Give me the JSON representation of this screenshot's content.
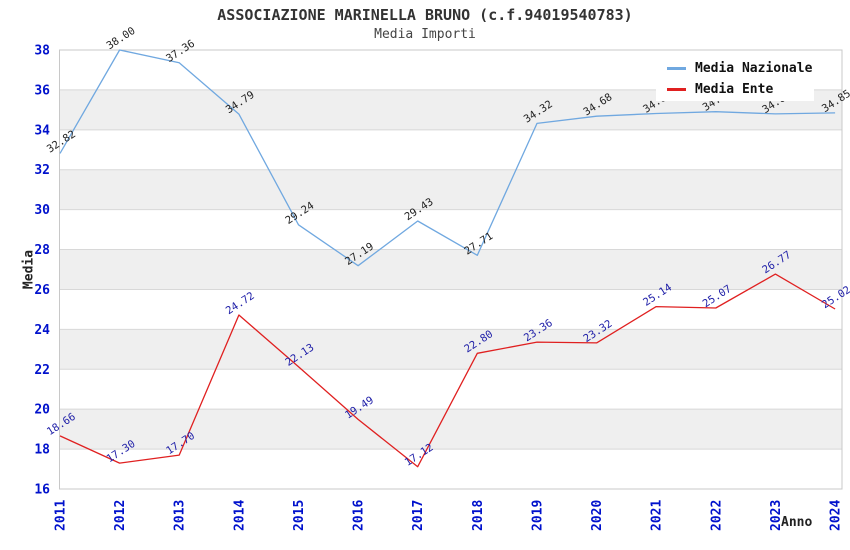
{
  "header": {
    "title": "ASSOCIAZIONE MARINELLA BRUNO (c.f.94019540783)",
    "subtitle": "Media Importi"
  },
  "axes": {
    "y_label": "Media",
    "x_label": "Anno"
  },
  "legend": {
    "items": [
      {
        "label": "Media Nazionale",
        "color": "#70A8E0"
      },
      {
        "label": "Media Ente",
        "color": "#E02020"
      }
    ]
  },
  "colors": {
    "tick_label": "#0011CC",
    "stripe": "#EFEFEF",
    "gridline": "#D8D8D8",
    "plot_border": "#C8C8C8",
    "nazionale_line": "#70A8E0",
    "nazionale_label": "#222222",
    "ente_line": "#E02020",
    "ente_label": "#2020A8"
  },
  "chart_data": {
    "type": "line",
    "title": "ASSOCIAZIONE MARINELLA BRUNO (c.f.94019540783)",
    "subtitle": "Media Importi",
    "xlabel": "Anno",
    "ylabel": "Media",
    "ylim": [
      16,
      38
    ],
    "ytick_step": 2,
    "grid": true,
    "striped_bands": true,
    "legend_position": "top-right",
    "categories": [
      2011,
      2012,
      2013,
      2014,
      2015,
      2016,
      2017,
      2018,
      2019,
      2020,
      2021,
      2022,
      2023,
      2024
    ],
    "series": [
      {
        "name": "Media Nazionale",
        "color": "#70A8E0",
        "label_color": "#222222",
        "values": [
          32.82,
          38.0,
          37.36,
          34.79,
          29.24,
          27.19,
          29.43,
          27.71,
          34.32,
          34.68,
          34.82,
          34.91,
          34.8,
          34.85
        ]
      },
      {
        "name": "Media Ente",
        "color": "#E02020",
        "label_color": "#2020A8",
        "values": [
          18.66,
          17.3,
          17.7,
          24.72,
          22.13,
          19.49,
          17.12,
          22.8,
          23.36,
          23.32,
          25.14,
          25.07,
          26.77,
          25.02
        ]
      }
    ]
  }
}
